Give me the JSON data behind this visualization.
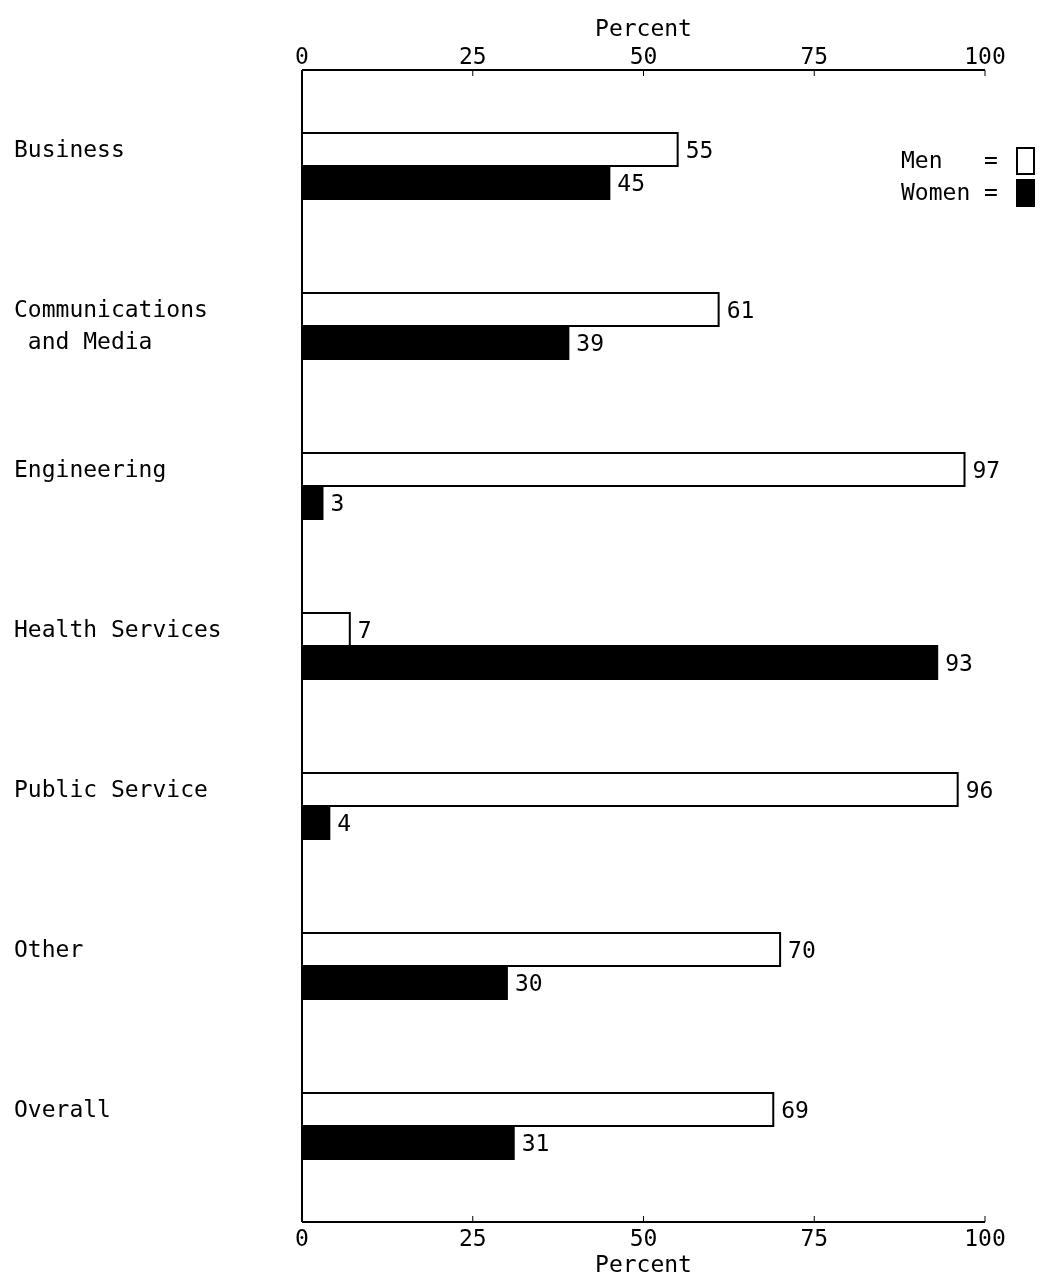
{
  "chart_data": {
    "type": "bar",
    "orientation": "horizontal",
    "categories": [
      "Business",
      "Communications and Media",
      "Engineering",
      "Health Services",
      "Public Service",
      "Other",
      "Overall"
    ],
    "series": [
      {
        "name": "Men   =",
        "color": "#ffffff",
        "values": [
          55,
          61,
          97,
          7,
          96,
          70,
          69
        ]
      },
      {
        "name": "Women =",
        "color": "#000000",
        "values": [
          45,
          39,
          3,
          93,
          4,
          30,
          31
        ]
      }
    ],
    "xlim": [
      0,
      100
    ],
    "xticks": [
      0,
      25,
      50,
      75,
      100
    ],
    "xlabel": "Percent",
    "x2lim": [
      0,
      100
    ],
    "x2ticks": [
      0,
      25,
      50,
      75,
      100
    ],
    "x2label": "Percent",
    "data_labels": true,
    "legend": "top right",
    "grid": false
  }
}
